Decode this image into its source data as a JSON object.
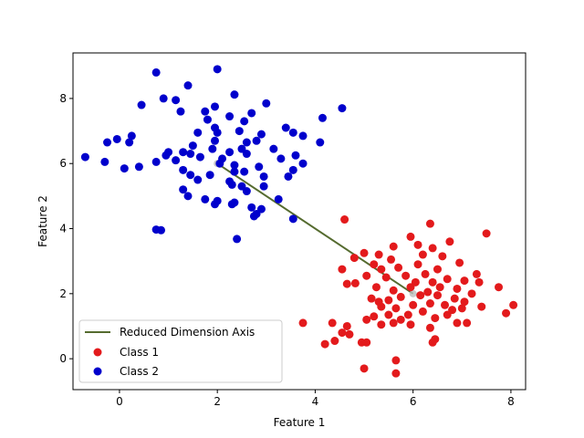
{
  "chart_data": {
    "type": "scatter",
    "title": "",
    "xlabel": "Feature 1",
    "ylabel": "Feature 2",
    "xlim": [
      -0.95,
      8.3
    ],
    "ylim": [
      -0.95,
      9.4
    ],
    "xticks": [
      0,
      2,
      4,
      6,
      8
    ],
    "yticks": [
      0,
      2,
      4,
      6,
      8
    ],
    "grid": false,
    "legend_position": "lower-left",
    "line": {
      "name": "Reduced Dimension Axis",
      "color": "#556b2f",
      "points": [
        [
          2.0,
          6.0
        ],
        [
          6.0,
          2.0
        ]
      ]
    },
    "series": [
      {
        "name": "Class 1",
        "color": "#e31a1c",
        "points": [
          [
            4.6,
            4.28
          ],
          [
            6.35,
            4.15
          ],
          [
            5.95,
            3.75
          ],
          [
            6.1,
            3.5
          ],
          [
            5.6,
            3.45
          ],
          [
            6.75,
            3.6
          ],
          [
            6.4,
            3.4
          ],
          [
            7.5,
            3.85
          ],
          [
            5.3,
            3.2
          ],
          [
            5.55,
            3.05
          ],
          [
            6.2,
            3.2
          ],
          [
            6.6,
            3.15
          ],
          [
            5.0,
            3.25
          ],
          [
            4.8,
            3.1
          ],
          [
            6.95,
            2.95
          ],
          [
            5.7,
            2.8
          ],
          [
            6.1,
            2.9
          ],
          [
            5.2,
            2.9
          ],
          [
            5.35,
            2.75
          ],
          [
            4.55,
            2.75
          ],
          [
            6.5,
            2.75
          ],
          [
            7.3,
            2.6
          ],
          [
            5.85,
            2.55
          ],
          [
            6.25,
            2.6
          ],
          [
            5.05,
            2.55
          ],
          [
            5.45,
            2.5
          ],
          [
            6.7,
            2.45
          ],
          [
            7.05,
            2.4
          ],
          [
            4.65,
            2.3
          ],
          [
            4.82,
            2.32
          ],
          [
            6.05,
            2.35
          ],
          [
            6.4,
            2.35
          ],
          [
            6.55,
            2.2
          ],
          [
            5.95,
            2.2
          ],
          [
            7.35,
            2.35
          ],
          [
            7.75,
            2.2
          ],
          [
            5.6,
            2.1
          ],
          [
            5.25,
            2.2
          ],
          [
            6.9,
            2.15
          ],
          [
            6.3,
            2.05
          ],
          [
            6.15,
            1.95
          ],
          [
            5.75,
            1.9
          ],
          [
            5.15,
            1.85
          ],
          [
            5.5,
            1.8
          ],
          [
            6.5,
            1.95
          ],
          [
            6.85,
            1.85
          ],
          [
            7.05,
            1.75
          ],
          [
            7.2,
            2.0
          ],
          [
            5.3,
            1.75
          ],
          [
            6.65,
            1.65
          ],
          [
            6.35,
            1.7
          ],
          [
            6.0,
            1.65
          ],
          [
            5.35,
            1.6
          ],
          [
            5.65,
            1.55
          ],
          [
            6.8,
            1.5
          ],
          [
            7.0,
            1.55
          ],
          [
            7.4,
            1.6
          ],
          [
            8.05,
            1.65
          ],
          [
            7.9,
            1.4
          ],
          [
            6.2,
            1.45
          ],
          [
            5.9,
            1.35
          ],
          [
            5.5,
            1.35
          ],
          [
            6.7,
            1.35
          ],
          [
            5.2,
            1.3
          ],
          [
            5.75,
            1.2
          ],
          [
            6.45,
            1.25
          ],
          [
            5.05,
            1.2
          ],
          [
            7.1,
            1.1
          ],
          [
            6.9,
            1.1
          ],
          [
            5.95,
            1.05
          ],
          [
            5.6,
            1.1
          ],
          [
            5.35,
            1.05
          ],
          [
            4.65,
            1.0
          ],
          [
            4.35,
            1.1
          ],
          [
            3.75,
            1.1
          ],
          [
            6.35,
            0.95
          ],
          [
            4.55,
            0.8
          ],
          [
            4.7,
            0.75
          ],
          [
            4.4,
            0.55
          ],
          [
            4.2,
            0.45
          ],
          [
            6.45,
            0.6
          ],
          [
            6.4,
            0.5
          ],
          [
            4.95,
            0.5
          ],
          [
            5.05,
            0.5
          ],
          [
            5.65,
            -0.05
          ],
          [
            5.0,
            -0.3
          ],
          [
            5.65,
            -0.45
          ]
        ]
      },
      {
        "name": "Class 2",
        "color": "#0000cc",
        "points": [
          [
            2.0,
            8.9
          ],
          [
            0.75,
            8.8
          ],
          [
            1.4,
            8.4
          ],
          [
            2.35,
            8.12
          ],
          [
            0.9,
            8.0
          ],
          [
            1.15,
            7.95
          ],
          [
            0.45,
            7.8
          ],
          [
            4.55,
            7.7
          ],
          [
            1.95,
            7.75
          ],
          [
            3.0,
            7.85
          ],
          [
            1.75,
            7.6
          ],
          [
            1.25,
            7.6
          ],
          [
            2.7,
            7.55
          ],
          [
            2.25,
            7.45
          ],
          [
            4.15,
            7.4
          ],
          [
            1.8,
            7.35
          ],
          [
            2.55,
            7.3
          ],
          [
            3.4,
            7.1
          ],
          [
            1.95,
            7.1
          ],
          [
            2.45,
            7.0
          ],
          [
            1.6,
            6.95
          ],
          [
            2.0,
            6.95
          ],
          [
            2.9,
            6.9
          ],
          [
            3.55,
            6.95
          ],
          [
            2.8,
            6.7
          ],
          [
            1.95,
            6.7
          ],
          [
            2.6,
            6.65
          ],
          [
            4.1,
            6.65
          ],
          [
            3.75,
            6.85
          ],
          [
            0.25,
            6.85
          ],
          [
            -0.05,
            6.75
          ],
          [
            -0.25,
            6.65
          ],
          [
            0.2,
            6.65
          ],
          [
            1.5,
            6.55
          ],
          [
            2.5,
            6.45
          ],
          [
            1.9,
            6.45
          ],
          [
            3.15,
            6.45
          ],
          [
            2.25,
            6.35
          ],
          [
            1.0,
            6.35
          ],
          [
            1.3,
            6.35
          ],
          [
            1.45,
            6.3
          ],
          [
            2.6,
            6.3
          ],
          [
            0.95,
            6.25
          ],
          [
            3.6,
            6.25
          ],
          [
            1.65,
            6.2
          ],
          [
            3.3,
            6.15
          ],
          [
            2.1,
            6.15
          ],
          [
            -0.7,
            6.2
          ],
          [
            1.15,
            6.1
          ],
          [
            -0.3,
            6.05
          ],
          [
            0.75,
            6.05
          ],
          [
            2.05,
            6.0
          ],
          [
            2.35,
            5.95
          ],
          [
            2.85,
            5.9
          ],
          [
            3.75,
            6.0
          ],
          [
            3.55,
            5.8
          ],
          [
            0.4,
            5.9
          ],
          [
            0.1,
            5.85
          ],
          [
            1.3,
            5.8
          ],
          [
            2.35,
            5.75
          ],
          [
            2.55,
            5.75
          ],
          [
            1.85,
            5.65
          ],
          [
            1.45,
            5.65
          ],
          [
            3.45,
            5.6
          ],
          [
            2.95,
            5.6
          ],
          [
            1.6,
            5.5
          ],
          [
            2.25,
            5.45
          ],
          [
            2.95,
            5.3
          ],
          [
            2.3,
            5.35
          ],
          [
            2.5,
            5.3
          ],
          [
            1.3,
            5.2
          ],
          [
            2.6,
            5.15
          ],
          [
            1.4,
            5.0
          ],
          [
            1.75,
            4.9
          ],
          [
            2.0,
            4.85
          ],
          [
            1.95,
            4.75
          ],
          [
            2.35,
            4.8
          ],
          [
            3.25,
            4.9
          ],
          [
            2.3,
            4.75
          ],
          [
            2.7,
            4.65
          ],
          [
            2.9,
            4.6
          ],
          [
            3.55,
            4.3
          ],
          [
            2.8,
            4.45
          ],
          [
            2.75,
            4.38
          ],
          [
            0.75,
            3.97
          ],
          [
            0.85,
            3.95
          ],
          [
            2.4,
            3.68
          ]
        ]
      }
    ]
  }
}
